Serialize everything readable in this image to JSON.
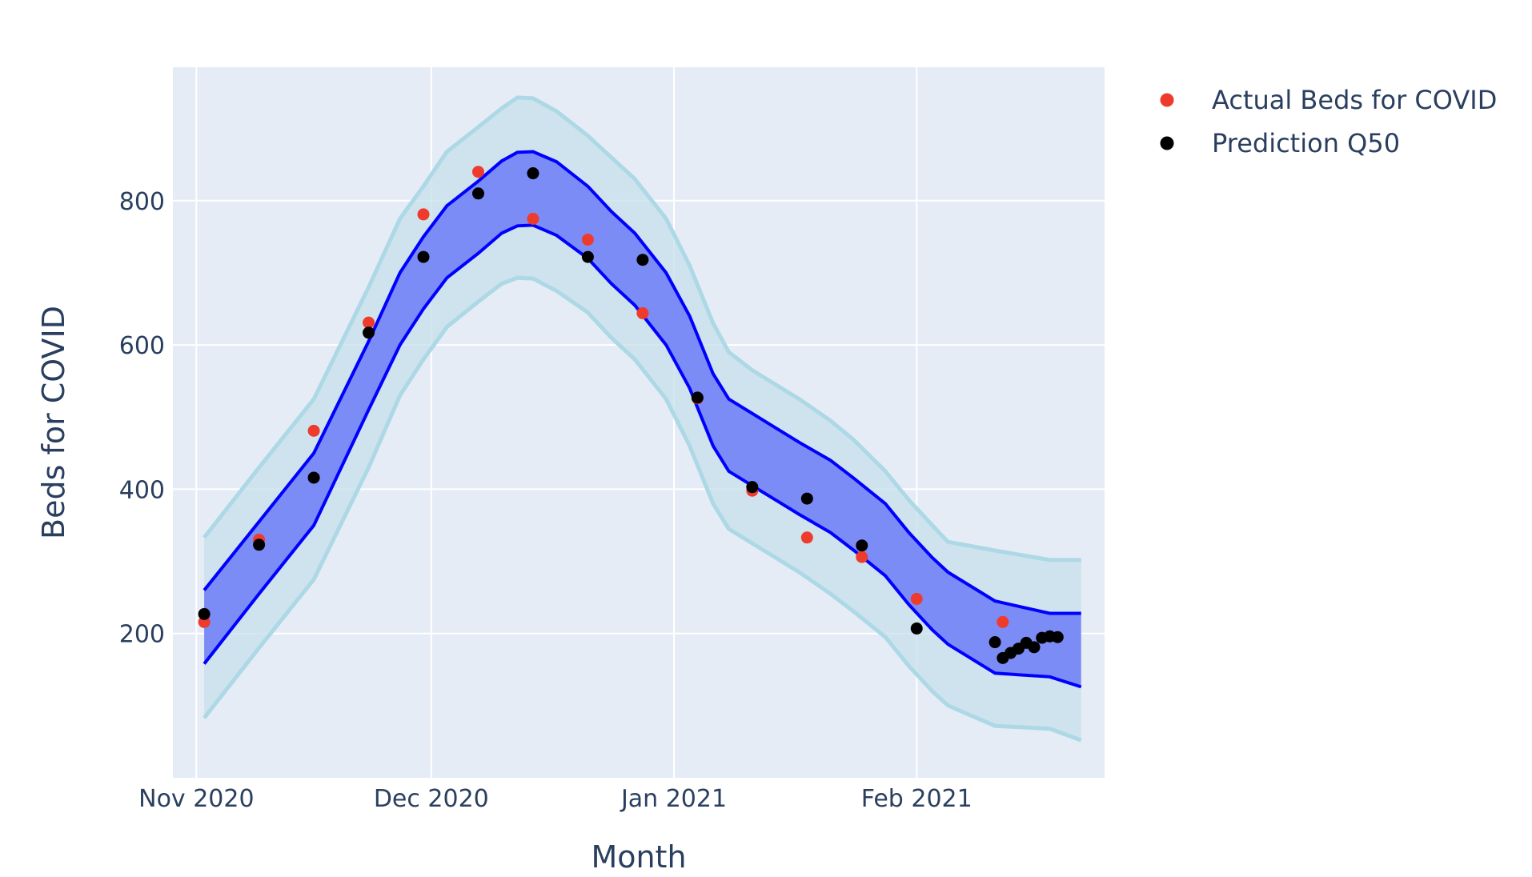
{
  "chart_data": {
    "type": "scatter",
    "xlabel": "Month",
    "ylabel": "Beds for COVID",
    "x_range": [
      "2020-10-29",
      "2021-02-25"
    ],
    "y_range": [
      0,
      985
    ],
    "x_ticks": [
      {
        "date": "2020-11-01",
        "label": "Nov 2020"
      },
      {
        "date": "2020-12-01",
        "label": "Dec 2020"
      },
      {
        "date": "2021-01-01",
        "label": "Jan 2021"
      },
      {
        "date": "2021-02-01",
        "label": "Feb 2021"
      }
    ],
    "y_ticks": [
      200,
      400,
      600,
      800
    ],
    "grid": true,
    "legend_position": "top-right",
    "colors": {
      "plot_bg": "#e5ecf6",
      "grid": "#ffffff",
      "outer_band_fill": "#c5e0ea",
      "outer_band_line": "#add8e6",
      "inner_band_fill": "#7b8cf6",
      "inner_band_line": "#0000ff",
      "actual": "#ef3b2c",
      "prediction": "#000000"
    },
    "bands": {
      "dates": [
        "2020-11-02",
        "2020-11-09",
        "2020-11-16",
        "2020-11-23",
        "2020-11-27",
        "2020-11-30",
        "2020-12-03",
        "2020-12-07",
        "2020-12-10",
        "2020-12-12",
        "2020-12-14",
        "2020-12-17",
        "2020-12-21",
        "2020-12-24",
        "2020-12-27",
        "2020-12-31",
        "2021-01-03",
        "2021-01-06",
        "2021-01-08",
        "2021-01-11",
        "2021-01-14",
        "2021-01-17",
        "2021-01-21",
        "2021-01-24",
        "2021-01-28",
        "2021-01-31",
        "2021-02-03",
        "2021-02-05",
        "2021-02-11",
        "2021-02-18"
      ],
      "outer_upper": [
        333,
        430,
        525,
        680,
        775,
        820,
        868,
        902,
        928,
        943,
        942,
        924,
        890,
        860,
        830,
        775,
        710,
        630,
        590,
        565,
        545,
        525,
        495,
        468,
        425,
        385,
        350,
        327,
        315,
        302
      ],
      "inner_upper": [
        260,
        355,
        450,
        605,
        700,
        750,
        793,
        827,
        855,
        867,
        868,
        854,
        820,
        785,
        755,
        700,
        640,
        560,
        525,
        505,
        485,
        465,
        440,
        415,
        380,
        340,
        305,
        285,
        245,
        228
      ],
      "inner_lower": [
        158,
        255,
        350,
        510,
        600,
        650,
        693,
        727,
        755,
        765,
        766,
        752,
        720,
        685,
        655,
        600,
        540,
        460,
        425,
        405,
        385,
        365,
        340,
        315,
        280,
        240,
        205,
        185,
        145,
        140
      ],
      "outer_lower": [
        83,
        180,
        275,
        430,
        530,
        580,
        625,
        660,
        685,
        693,
        692,
        675,
        645,
        610,
        580,
        525,
        460,
        380,
        345,
        325,
        305,
        285,
        255,
        230,
        195,
        155,
        120,
        100,
        72,
        68
      ],
      "end_values": {
        "date": "2021-02-22",
        "outer_upper": 302,
        "inner_upper": 228,
        "inner_lower": 126,
        "outer_lower": 52
      }
    },
    "series": [
      {
        "name": "Actual Beds for COVID",
        "color": "#ef3b2c",
        "x": [
          "2020-11-02",
          "2020-11-09",
          "2020-11-16",
          "2020-11-23",
          "2020-11-30",
          "2020-12-07",
          "2020-12-14",
          "2020-12-21",
          "2020-12-28",
          "2021-01-04",
          "2021-01-11",
          "2021-01-18",
          "2021-01-25",
          "2021-02-01",
          "2021-02-12"
        ],
        "y": [
          216,
          330,
          481,
          631,
          781,
          840,
          775,
          746,
          644,
          526,
          398,
          333,
          306,
          248,
          216
        ]
      },
      {
        "name": "Prediction Q50",
        "color": "#000000",
        "x": [
          "2020-11-02",
          "2020-11-09",
          "2020-11-16",
          "2020-11-23",
          "2020-11-30",
          "2020-12-07",
          "2020-12-14",
          "2020-12-21",
          "2020-12-28",
          "2021-01-04",
          "2021-01-11",
          "2021-01-18",
          "2021-01-25",
          "2021-02-01",
          "2021-02-11",
          "2021-02-12",
          "2021-02-13",
          "2021-02-14",
          "2021-02-15",
          "2021-02-16",
          "2021-02-17",
          "2021-02-18",
          "2021-02-19"
        ],
        "y": [
          227,
          323,
          416,
          617,
          722,
          810,
          838,
          722,
          718,
          527,
          403,
          387,
          322,
          207,
          188,
          166,
          173,
          179,
          187,
          181,
          194,
          196,
          195
        ]
      }
    ]
  }
}
